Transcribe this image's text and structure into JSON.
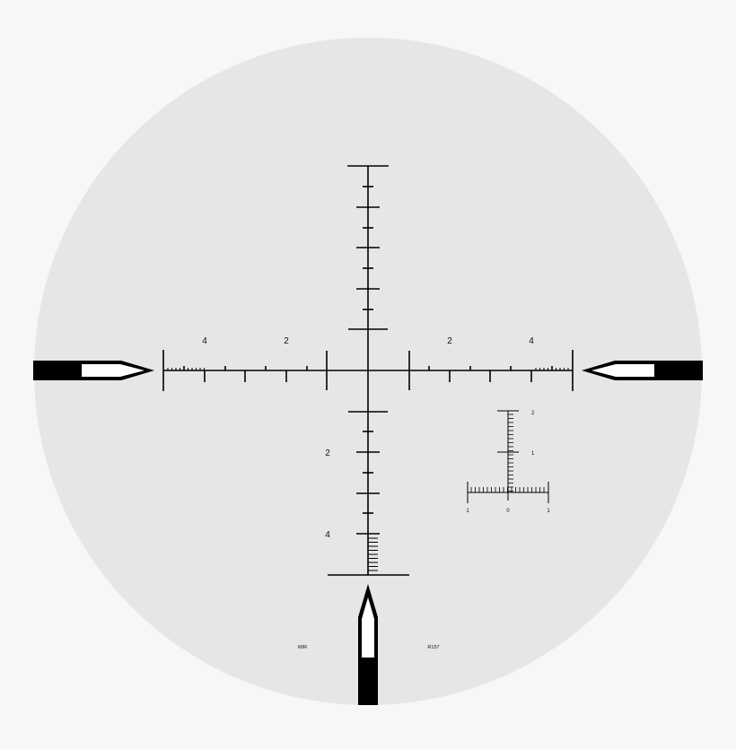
{
  "colors": {
    "page_background": "#f7f7f7",
    "field_of_view": "#e5e6e7",
    "reticle_ink": "#000000",
    "post_insert": "#ffffff"
  },
  "reticle": {
    "name_label": "MIR",
    "model_label": "R157",
    "horizontal_left_labels": [
      "4",
      "2"
    ],
    "horizontal_right_labels": [
      "2",
      "4"
    ],
    "vertical_lower_labels": [
      "2",
      "4"
    ]
  },
  "inset_scale": {
    "vertical_labels": [
      "2",
      "1"
    ],
    "horizontal_labels": [
      "1",
      "0",
      "1"
    ]
  },
  "icons": {
    "left_post": "left-post-icon",
    "right_post": "right-post-icon",
    "bottom_post": "bottom-post-icon"
  }
}
